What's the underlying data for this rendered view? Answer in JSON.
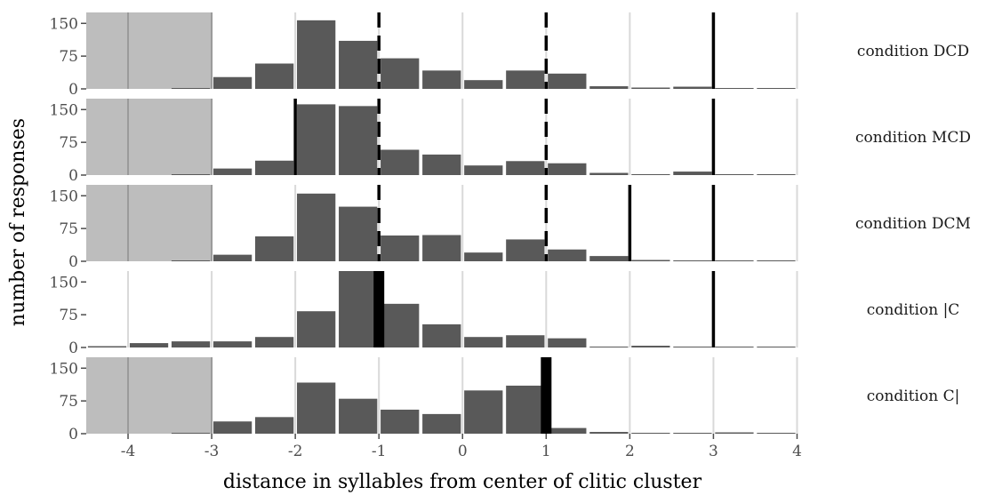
{
  "chart_data": {
    "type": "bar",
    "xlabel": "distance in syllables from center of clitic cluster",
    "ylabel": "number of responses",
    "xlim": [
      -4.5,
      4.25
    ],
    "ylim": [
      0,
      175
    ],
    "x_ticks": [
      "-4",
      "-3",
      "-2",
      "-1",
      "0",
      "1",
      "2",
      "3",
      "4"
    ],
    "y_ticks": [
      "150",
      "75",
      "0"
    ],
    "y_tick_values": [
      150,
      75,
      0
    ],
    "grid": "vertical",
    "bin_width": 0.5,
    "bin_centers": [
      -3.25,
      -2.75,
      -2.25,
      -1.75,
      -1.25,
      -0.75,
      -0.25,
      0.25,
      0.75,
      1.25,
      1.75,
      2.25,
      2.75,
      3.25,
      3.75
    ],
    "colors": {
      "bar": "#595959",
      "shade": "#bdbdbd",
      "grid": "#d9d9d9",
      "marker": "#000000",
      "background": "#ffffff"
    },
    "panels": [
      {
        "label": "condition DCD",
        "values": [
          2,
          27,
          58,
          157,
          110,
          70,
          42,
          20,
          42,
          35,
          6,
          3,
          5,
          2,
          1
        ],
        "shaded": [
          -4.5,
          -3.0
        ],
        "markers": [
          {
            "x": -1,
            "style": "dashed",
            "weight": "normal"
          },
          {
            "x": 1,
            "style": "dashed",
            "weight": "normal"
          },
          {
            "x": 3,
            "style": "solid",
            "weight": "normal"
          }
        ]
      },
      {
        "label": "condition MCD",
        "values": [
          1,
          15,
          33,
          162,
          158,
          58,
          47,
          22,
          32,
          27,
          5,
          2,
          8,
          0,
          0
        ],
        "shaded": [
          -4.5,
          -3.0
        ],
        "markers": [
          {
            "x": -2,
            "style": "solid",
            "weight": "normal"
          },
          {
            "x": -1,
            "style": "dashed",
            "weight": "normal"
          },
          {
            "x": 1,
            "style": "dashed",
            "weight": "normal"
          },
          {
            "x": 3,
            "style": "solid",
            "weight": "normal"
          }
        ]
      },
      {
        "label": "condition DCM",
        "values": [
          2,
          15,
          57,
          155,
          125,
          59,
          60,
          20,
          50,
          27,
          12,
          3,
          2,
          2,
          0
        ],
        "shaded": [
          -4.5,
          -3.0
        ],
        "markers": [
          {
            "x": -1,
            "style": "dashed",
            "weight": "normal"
          },
          {
            "x": 1,
            "style": "dashed",
            "weight": "normal"
          },
          {
            "x": 2,
            "style": "solid",
            "weight": "normal"
          },
          {
            "x": 3,
            "style": "solid",
            "weight": "normal"
          }
        ]
      },
      {
        "label": "condition |C",
        "extra_bins": [
          {
            "x": -4.25,
            "value": 3
          },
          {
            "x": -3.75,
            "value": 10
          }
        ],
        "values": [
          14,
          14,
          24,
          83,
          205,
          100,
          53,
          24,
          28,
          21,
          2,
          4,
          2,
          1,
          0
        ],
        "shaded": null,
        "markers": [
          {
            "x": -1,
            "style": "solid",
            "weight": "bold"
          },
          {
            "x": 3,
            "style": "solid",
            "weight": "normal"
          }
        ]
      },
      {
        "label": "condition C|",
        "values": [
          2,
          28,
          38,
          117,
          80,
          55,
          45,
          99,
          110,
          13,
          4,
          1,
          1,
          3,
          0
        ],
        "shaded": [
          -4.5,
          -3.0
        ],
        "markers": [
          {
            "x": 1,
            "style": "solid",
            "weight": "bold"
          }
        ]
      }
    ]
  }
}
